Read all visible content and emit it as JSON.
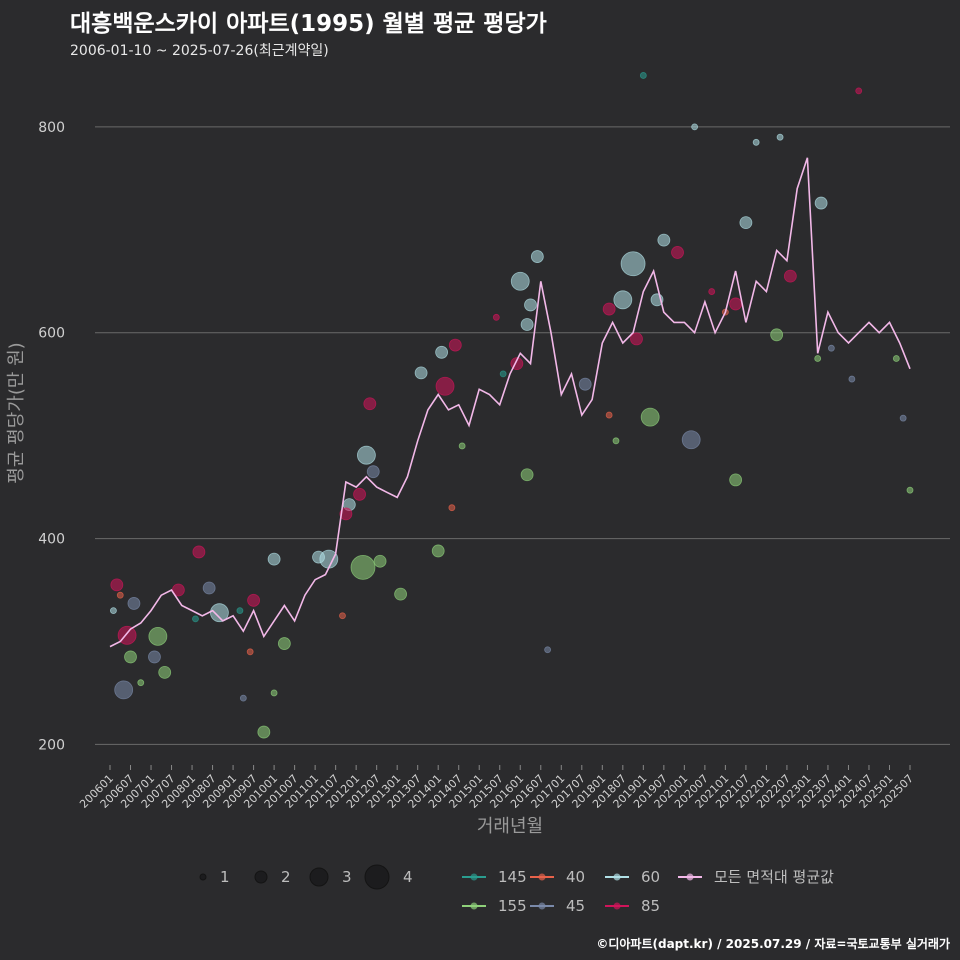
{
  "title": "대흥백운스카이 아파트(1995) 월별 평균 평당가",
  "subtitle": "2006-01-10 ~ 2025-07-26(최근계약일)",
  "caption": "©디아파트(dapt.kr) / 2025.07.29 / 자료=국토교통부 실거래가",
  "colors": {
    "background": "#2b2b2d",
    "grid": "#6a6a6a",
    "avg_line": "#f2b8e8",
    "s145": "#2a9d8f",
    "s155": "#8fd17a",
    "s40": "#e8624a",
    "s45": "#7a8aaa",
    "s60": "#b0e0e6",
    "s85": "#d1145a"
  },
  "chart_data": {
    "type": "scatter",
    "title": "대흥백운스카이 아파트(1995) 월별 평균 평당가",
    "xlabel": "거래년월",
    "ylabel": "평균 평당가(만 원)",
    "ylim": [
      180,
      865
    ],
    "y_ticks": [
      200,
      400,
      600,
      800
    ],
    "grid": true,
    "legend_position": "bottom",
    "x_tick_labels": [
      "200601",
      "200607",
      "200701",
      "200707",
      "200801",
      "200807",
      "200901",
      "200907",
      "201001",
      "201007",
      "201101",
      "201107",
      "201201",
      "201207",
      "201301",
      "201307",
      "201401",
      "201407",
      "201501",
      "201507",
      "201601",
      "201607",
      "201701",
      "201707",
      "201801",
      "201807",
      "201901",
      "201907",
      "202001",
      "202007",
      "202101",
      "202107",
      "202201",
      "202207",
      "202301",
      "202307",
      "202401",
      "202407",
      "202501",
      "202507"
    ],
    "size_legend": [
      {
        "label": "1",
        "count": 1
      },
      {
        "label": "2",
        "count": 2
      },
      {
        "label": "3",
        "count": 3
      },
      {
        "label": "4",
        "count": 4
      }
    ],
    "series_legend": [
      {
        "label": "145",
        "color_key": "s145"
      },
      {
        "label": "155",
        "color_key": "s155"
      },
      {
        "label": "40",
        "color_key": "s40"
      },
      {
        "label": "45",
        "color_key": "s45"
      },
      {
        "label": "60",
        "color_key": "s60"
      },
      {
        "label": "85",
        "color_key": "s85"
      },
      {
        "label": "모든 면적대 평균값",
        "color_key": "avg_line",
        "line": true
      }
    ],
    "average_line": {
      "name": "모든 면적대 평균값",
      "x": [
        "2006-01",
        "2006-04",
        "2006-07",
        "2006-10",
        "2007-01",
        "2007-04",
        "2007-07",
        "2007-10",
        "2008-01",
        "2008-04",
        "2008-07",
        "2008-10",
        "2009-01",
        "2009-04",
        "2009-07",
        "2009-10",
        "2010-01",
        "2010-04",
        "2010-07",
        "2010-10",
        "2011-01",
        "2011-04",
        "2011-07",
        "2011-10",
        "2012-01",
        "2012-04",
        "2012-07",
        "2012-10",
        "2013-01",
        "2013-04",
        "2013-07",
        "2013-10",
        "2014-01",
        "2014-04",
        "2014-07",
        "2014-10",
        "2015-01",
        "2015-04",
        "2015-07",
        "2015-10",
        "2016-01",
        "2016-04",
        "2016-07",
        "2016-10",
        "2017-01",
        "2017-04",
        "2017-07",
        "2017-10",
        "2018-01",
        "2018-04",
        "2018-07",
        "2018-10",
        "2019-01",
        "2019-04",
        "2019-07",
        "2019-10",
        "2020-01",
        "2020-04",
        "2020-07",
        "2020-10",
        "2021-01",
        "2021-04",
        "2021-07",
        "2021-10",
        "2022-01",
        "2022-04",
        "2022-07",
        "2022-10",
        "2023-01",
        "2023-04",
        "2023-07",
        "2023-10",
        "2024-01",
        "2024-04",
        "2024-07",
        "2024-10",
        "2025-01",
        "2025-04",
        "2025-07"
      ],
      "values": [
        295,
        300,
        312,
        318,
        330,
        345,
        350,
        335,
        330,
        325,
        330,
        320,
        325,
        310,
        330,
        305,
        320,
        335,
        320,
        345,
        360,
        365,
        385,
        455,
        450,
        460,
        450,
        445,
        440,
        460,
        495,
        525,
        540,
        525,
        530,
        510,
        545,
        540,
        530,
        560,
        580,
        570,
        650,
        600,
        540,
        560,
        520,
        535,
        590,
        610,
        590,
        600,
        640,
        660,
        620,
        610,
        610,
        600,
        630,
        600,
        620,
        660,
        610,
        650,
        640,
        680,
        670,
        740,
        770,
        580,
        620,
        600,
        590,
        600,
        610,
        600,
        610,
        590,
        565
      ]
    },
    "scatter_series": [
      {
        "name": "145",
        "points": [
          [
            "2008-02",
            322,
            1
          ],
          [
            "2009-03",
            330,
            1
          ],
          [
            "2015-08",
            560,
            1
          ],
          [
            "2019-01",
            850,
            1
          ]
        ]
      },
      {
        "name": "155",
        "points": [
          [
            "2006-07",
            285,
            2
          ],
          [
            "2007-03",
            305,
            3
          ],
          [
            "2007-05",
            270,
            2
          ],
          [
            "2009-10",
            212,
            2
          ],
          [
            "2010-04",
            298,
            2
          ],
          [
            "2012-03",
            372,
            4
          ],
          [
            "2012-08",
            378,
            2
          ],
          [
            "2013-02",
            346,
            2
          ],
          [
            "2014-01",
            388,
            2
          ],
          [
            "2016-03",
            462,
            2
          ],
          [
            "2019-03",
            518,
            3
          ],
          [
            "2021-04",
            457,
            2
          ],
          [
            "2022-04",
            598,
            2
          ],
          [
            "2006-10",
            260,
            1
          ],
          [
            "2010-01",
            250,
            1
          ],
          [
            "2014-08",
            490,
            1
          ],
          [
            "2018-05",
            495,
            1
          ],
          [
            "2023-04",
            575,
            1
          ],
          [
            "2025-03",
            575,
            1
          ],
          [
            "2025-07",
            447,
            1
          ]
        ]
      },
      {
        "name": "40",
        "points": [
          [
            "2006-04",
            345,
            1
          ],
          [
            "2009-06",
            290,
            1
          ],
          [
            "2011-09",
            325,
            1
          ],
          [
            "2014-05",
            430,
            1
          ],
          [
            "2018-03",
            520,
            1
          ],
          [
            "2021-01",
            620,
            1
          ]
        ]
      },
      {
        "name": "45",
        "points": [
          [
            "2006-05",
            253,
            3
          ],
          [
            "2006-08",
            337,
            2
          ],
          [
            "2007-02",
            285,
            2
          ],
          [
            "2008-06",
            352,
            2
          ],
          [
            "2012-06",
            465,
            2
          ],
          [
            "2016-09",
            292,
            1
          ],
          [
            "2017-08",
            550,
            2
          ],
          [
            "2020-03",
            496,
            3
          ],
          [
            "2023-08",
            585,
            1
          ],
          [
            "2024-02",
            555,
            1
          ],
          [
            "2025-05",
            517,
            1
          ],
          [
            "2009-04",
            245,
            1
          ]
        ]
      },
      {
        "name": "60",
        "points": [
          [
            "2006-02",
            330,
            1
          ],
          [
            "2008-09",
            328,
            3
          ],
          [
            "2010-01",
            380,
            2
          ],
          [
            "2011-02",
            382,
            2
          ],
          [
            "2011-05",
            380,
            3
          ],
          [
            "2011-11",
            433,
            2
          ],
          [
            "2012-04",
            481,
            3
          ],
          [
            "2013-08",
            561,
            2
          ],
          [
            "2014-02",
            581,
            2
          ],
          [
            "2016-01",
            650,
            3
          ],
          [
            "2016-06",
            674,
            2
          ],
          [
            "2016-04",
            627,
            2
          ],
          [
            "2016-03",
            608,
            2
          ],
          [
            "2018-07",
            632,
            3
          ],
          [
            "2018-10",
            667,
            4
          ],
          [
            "2019-07",
            690,
            2
          ],
          [
            "2019-05",
            632,
            2
          ],
          [
            "2021-07",
            707,
            2
          ],
          [
            "2023-05",
            726,
            2
          ],
          [
            "2020-04",
            800,
            1
          ],
          [
            "2022-05",
            790,
            1
          ],
          [
            "2021-10",
            785,
            1
          ]
        ]
      },
      {
        "name": "85",
        "points": [
          [
            "2006-03",
            355,
            2
          ],
          [
            "2006-06",
            306,
            3
          ],
          [
            "2007-09",
            350,
            2
          ],
          [
            "2008-03",
            387,
            2
          ],
          [
            "2009-07",
            340,
            2
          ],
          [
            "2011-10",
            424,
            2
          ],
          [
            "2012-02",
            443,
            2
          ],
          [
            "2012-05",
            531,
            2
          ],
          [
            "2014-03",
            548,
            3
          ],
          [
            "2014-06",
            588,
            2
          ],
          [
            "2015-12",
            570,
            2
          ],
          [
            "2018-03",
            623,
            2
          ],
          [
            "2018-11",
            594,
            2
          ],
          [
            "2019-11",
            678,
            2
          ],
          [
            "2021-04",
            628,
            2
          ],
          [
            "2022-08",
            655,
            2
          ],
          [
            "2024-04",
            835,
            1
          ],
          [
            "2015-06",
            615,
            1
          ],
          [
            "2020-09",
            640,
            1
          ]
        ]
      }
    ]
  }
}
